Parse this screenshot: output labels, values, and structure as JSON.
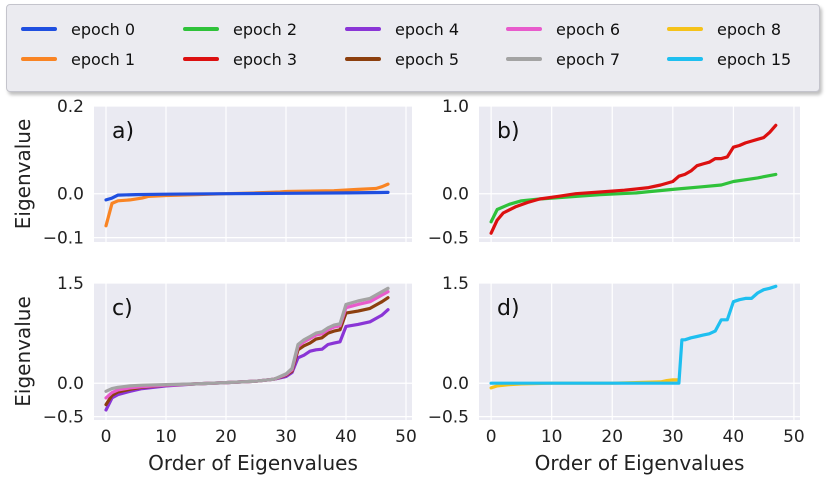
{
  "legend": [
    {
      "label": "epoch 0",
      "color": "#1f4fe0"
    },
    {
      "label": "epoch 1",
      "color": "#f98424"
    },
    {
      "label": "epoch 2",
      "color": "#2fc23a"
    },
    {
      "label": "epoch 3",
      "color": "#dc1010"
    },
    {
      "label": "epoch 4",
      "color": "#8a35d6"
    },
    {
      "label": "epoch 5",
      "color": "#8c3f0e"
    },
    {
      "label": "epoch 6",
      "color": "#e85bcc"
    },
    {
      "label": "epoch 7",
      "color": "#a3a3a3"
    },
    {
      "label": "epoch 8",
      "color": "#f5c21a"
    },
    {
      "label": "epoch 15",
      "color": "#1ebff0"
    }
  ],
  "chart_data": [
    {
      "type": "line",
      "panel_label": "a)",
      "ylabel": "Eigenvalue",
      "xlabel": "",
      "xlim": [
        -2,
        51
      ],
      "ylim": [
        -0.11,
        0.2
      ],
      "xticks": [],
      "xtick_labels": [],
      "yticks": [
        -0.1,
        0.0,
        0.2
      ],
      "ytick_labels": [
        "−0.1",
        "0.0",
        "0.2"
      ],
      "series": [
        {
          "name": "epoch 1",
          "color": "#f98424",
          "x": [
            0,
            1,
            2,
            4,
            6,
            7,
            10,
            15,
            20,
            25,
            29,
            30,
            34,
            38,
            42,
            45,
            46,
            47
          ],
          "y": [
            -0.073,
            -0.022,
            -0.016,
            -0.014,
            -0.01,
            -0.006,
            -0.004,
            -0.002,
            0.0,
            0.002,
            0.004,
            0.005,
            0.006,
            0.007,
            0.01,
            0.012,
            0.016,
            0.022
          ]
        },
        {
          "name": "epoch 0",
          "color": "#1f4fe0",
          "x": [
            0,
            1,
            2,
            5,
            10,
            20,
            30,
            40,
            47
          ],
          "y": [
            -0.014,
            -0.01,
            -0.003,
            -0.002,
            -0.001,
            0.0,
            0.001,
            0.002,
            0.003
          ]
        }
      ]
    },
    {
      "type": "line",
      "panel_label": "b)",
      "ylabel": "",
      "xlabel": "",
      "xlim": [
        -2,
        51
      ],
      "ylim": [
        -0.55,
        1.0
      ],
      "xticks": [],
      "xtick_labels": [],
      "yticks": [
        -0.5,
        0.0,
        1.0
      ],
      "ytick_labels": [
        "−0.5",
        "0.0",
        "1.0"
      ],
      "series": [
        {
          "name": "epoch 2",
          "color": "#2fc23a",
          "x": [
            0,
            1,
            3,
            5,
            8,
            12,
            18,
            24,
            30,
            35,
            38,
            40,
            44,
            47
          ],
          "y": [
            -0.32,
            -0.18,
            -0.12,
            -0.08,
            -0.06,
            -0.04,
            -0.01,
            0.01,
            0.05,
            0.08,
            0.1,
            0.14,
            0.18,
            0.22
          ]
        },
        {
          "name": "epoch 3",
          "color": "#dc1010",
          "x": [
            0,
            1,
            2,
            4,
            6,
            8,
            11,
            14,
            18,
            22,
            26,
            28,
            30,
            31,
            32,
            33,
            34,
            35,
            36,
            37,
            38,
            39,
            40,
            41,
            42,
            43,
            44,
            45,
            46,
            47
          ],
          "y": [
            -0.45,
            -0.3,
            -0.22,
            -0.15,
            -0.1,
            -0.06,
            -0.03,
            0.0,
            0.02,
            0.04,
            0.07,
            0.1,
            0.14,
            0.2,
            0.22,
            0.26,
            0.32,
            0.34,
            0.36,
            0.4,
            0.4,
            0.42,
            0.53,
            0.55,
            0.58,
            0.6,
            0.62,
            0.64,
            0.7,
            0.78
          ]
        }
      ]
    },
    {
      "type": "line",
      "panel_label": "c)",
      "ylabel": "Eigenvalue",
      "xlabel": "Order of Eigenvalues",
      "xlim": [
        -2,
        51
      ],
      "ylim": [
        -0.55,
        1.5
      ],
      "xticks": [
        0,
        10,
        20,
        30,
        40,
        50
      ],
      "xtick_labels": [
        "0",
        "10",
        "20",
        "30",
        "40",
        "50"
      ],
      "yticks": [
        -0.5,
        0.0,
        1.5
      ],
      "ytick_labels": [
        "−0.5",
        "0.0",
        "1.5"
      ],
      "series": [
        {
          "name": "epoch 4",
          "color": "#8a35d6",
          "x": [
            0,
            1,
            2,
            4,
            6,
            10,
            15,
            20,
            25,
            28,
            30,
            31,
            32,
            33,
            34,
            35,
            36,
            37,
            38,
            39,
            40,
            42,
            44,
            46,
            47
          ],
          "y": [
            -0.4,
            -0.22,
            -0.17,
            -0.12,
            -0.08,
            -0.04,
            -0.01,
            0.01,
            0.03,
            0.06,
            0.1,
            0.16,
            0.38,
            0.42,
            0.48,
            0.5,
            0.51,
            0.58,
            0.6,
            0.62,
            0.85,
            0.88,
            0.92,
            1.02,
            1.1
          ]
        },
        {
          "name": "epoch 5",
          "color": "#8c3f0e",
          "x": [
            0,
            1,
            2,
            4,
            6,
            10,
            15,
            20,
            25,
            28,
            30,
            31,
            32,
            33,
            34,
            35,
            36,
            37,
            38,
            39,
            40,
            42,
            44,
            46,
            47
          ],
          "y": [
            -0.32,
            -0.18,
            -0.13,
            -0.09,
            -0.06,
            -0.03,
            -0.01,
            0.01,
            0.03,
            0.06,
            0.12,
            0.18,
            0.5,
            0.56,
            0.6,
            0.66,
            0.68,
            0.75,
            0.78,
            0.8,
            1.05,
            1.08,
            1.12,
            1.22,
            1.28
          ]
        },
        {
          "name": "epoch 6",
          "color": "#e85bcc",
          "x": [
            0,
            1,
            2,
            4,
            6,
            10,
            15,
            20,
            25,
            28,
            30,
            31,
            32,
            33,
            34,
            35,
            36,
            37,
            38,
            39,
            40,
            42,
            44,
            46,
            47
          ],
          "y": [
            -0.22,
            -0.14,
            -0.1,
            -0.07,
            -0.05,
            -0.03,
            -0.01,
            0.01,
            0.03,
            0.06,
            0.13,
            0.2,
            0.55,
            0.62,
            0.67,
            0.72,
            0.74,
            0.8,
            0.84,
            0.86,
            1.13,
            1.18,
            1.22,
            1.32,
            1.37
          ]
        },
        {
          "name": "epoch 7",
          "color": "#a3a3a3",
          "x": [
            0,
            1,
            2,
            4,
            6,
            10,
            15,
            20,
            25,
            28,
            30,
            31,
            32,
            33,
            34,
            35,
            36,
            37,
            38,
            39,
            40,
            42,
            44,
            46,
            47
          ],
          "y": [
            -0.12,
            -0.08,
            -0.06,
            -0.04,
            -0.03,
            -0.02,
            -0.01,
            0.01,
            0.03,
            0.06,
            0.14,
            0.22,
            0.58,
            0.65,
            0.7,
            0.75,
            0.77,
            0.83,
            0.87,
            0.89,
            1.18,
            1.23,
            1.27,
            1.37,
            1.42
          ]
        }
      ]
    },
    {
      "type": "line",
      "panel_label": "d)",
      "ylabel": "",
      "xlabel": "Order of Eigenvalues",
      "xlim": [
        -2,
        51
      ],
      "ylim": [
        -0.55,
        1.5
      ],
      "xticks": [
        0,
        10,
        20,
        30,
        40,
        50
      ],
      "xtick_labels": [
        "0",
        "10",
        "20",
        "30",
        "40",
        "50"
      ],
      "yticks": [
        -0.5,
        0.0,
        1.5
      ],
      "ytick_labels": [
        "−0.5",
        "0.0",
        "1.5"
      ],
      "series": [
        {
          "name": "epoch 8",
          "color": "#f5c21a",
          "x": [
            0,
            1,
            3,
            5,
            10,
            20,
            28,
            29,
            30,
            31
          ],
          "y": [
            -0.07,
            -0.04,
            -0.02,
            -0.01,
            0.0,
            0.0,
            0.02,
            0.04,
            0.05,
            0.05
          ]
        },
        {
          "name": "epoch 15",
          "color": "#1ebff0",
          "x": [
            0,
            10,
            20,
            30,
            31,
            31.5,
            32,
            33,
            34,
            35,
            36,
            37,
            38,
            39,
            40,
            41,
            42,
            43,
            44,
            45,
            46,
            47
          ],
          "y": [
            0.0,
            0.0,
            0.0,
            0.0,
            0.0,
            0.65,
            0.65,
            0.68,
            0.7,
            0.72,
            0.74,
            0.78,
            0.95,
            0.95,
            1.22,
            1.25,
            1.27,
            1.27,
            1.35,
            1.4,
            1.42,
            1.45
          ]
        }
      ]
    }
  ]
}
